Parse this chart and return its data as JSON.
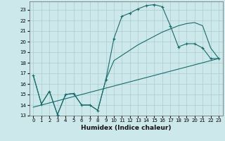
{
  "xlabel": "Humidex (Indice chaleur)",
  "background_color": "#cce8ea",
  "grid_color": "#aaccd0",
  "line_color": "#1a6b6b",
  "xlim": [
    -0.5,
    23.5
  ],
  "ylim": [
    13,
    23.8
  ],
  "yticks": [
    13,
    14,
    15,
    16,
    17,
    18,
    19,
    20,
    21,
    22,
    23
  ],
  "xticks": [
    0,
    1,
    2,
    3,
    4,
    5,
    6,
    7,
    8,
    9,
    10,
    11,
    12,
    13,
    14,
    15,
    16,
    17,
    18,
    19,
    20,
    21,
    22,
    23
  ],
  "curve1_x": [
    0,
    1,
    2,
    3,
    4,
    5,
    6,
    7,
    8,
    9,
    10,
    11,
    12,
    13,
    14,
    15,
    16,
    17,
    18,
    19,
    20,
    21,
    22,
    23
  ],
  "curve1_y": [
    16.8,
    14.1,
    15.3,
    13.1,
    15.0,
    15.1,
    14.0,
    14.0,
    13.5,
    16.4,
    20.3,
    22.4,
    22.7,
    23.1,
    23.4,
    23.5,
    23.3,
    21.5,
    19.5,
    19.8,
    19.8,
    19.4,
    18.4,
    18.4
  ],
  "curve2_x": [
    0,
    1,
    2,
    3,
    4,
    5,
    6,
    7,
    8,
    9,
    10,
    11,
    12,
    13,
    14,
    15,
    16,
    17,
    18,
    19,
    20,
    21,
    22,
    23
  ],
  "curve2_y": [
    16.8,
    14.1,
    15.3,
    13.1,
    15.0,
    15.1,
    14.0,
    14.0,
    13.5,
    16.4,
    18.2,
    18.7,
    19.2,
    19.7,
    20.1,
    20.5,
    20.9,
    21.2,
    21.5,
    21.7,
    21.8,
    21.5,
    19.4,
    18.4
  ],
  "line3_x": [
    0,
    23
  ],
  "line3_y": [
    13.8,
    18.4
  ]
}
